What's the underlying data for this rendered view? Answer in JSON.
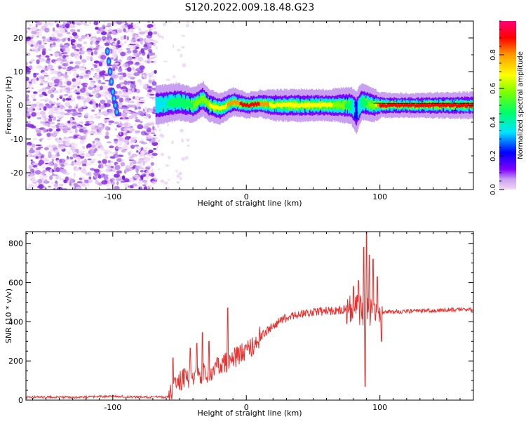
{
  "title": "S120.2022.009.18.48.G23",
  "chart_data": [
    {
      "type": "heatmap",
      "xlabel": "Height of straight line (km)",
      "ylabel": "Frequency (Hz)",
      "xlim": [
        -165,
        170
      ],
      "ylim": [
        -25,
        25
      ],
      "x_ticks": [
        -100,
        0,
        100
      ],
      "y_ticks": [
        -20,
        -10,
        0,
        10,
        20
      ],
      "colorbar": {
        "label": "Normalized spectral amplitude",
        "range": [
          0,
          1
        ],
        "ticks": [
          0.0,
          0.2,
          0.4,
          0.6,
          0.8
        ],
        "colors": [
          "#f4d9f4",
          "#c9a0f0",
          "#7f00ff",
          "#0000ff",
          "#00e5ff",
          "#00ff66",
          "#7fff00",
          "#ffff00",
          "#ff9900",
          "#ff0000",
          "#ff0077"
        ]
      },
      "noise_region_x": [
        -165,
        -68
      ],
      "signal_band": {
        "x": [
          -68,
          -60,
          -50,
          -40,
          -33,
          -28,
          -20,
          -10,
          0,
          10,
          20,
          40,
          60,
          78,
          82,
          86,
          95,
          100,
          120,
          140,
          170
        ],
        "freq": [
          0,
          0.5,
          1,
          0,
          2,
          0,
          -1,
          1,
          0,
          0.5,
          0,
          0,
          0,
          0,
          -2,
          1,
          0,
          0,
          0,
          0,
          0
        ],
        "amplitude": [
          0.4,
          0.45,
          0.5,
          0.55,
          0.6,
          0.65,
          0.7,
          0.8,
          0.9,
          0.85,
          0.7,
          0.65,
          0.7,
          0.5,
          0.3,
          0.5,
          0.6,
          0.9,
          0.95,
          0.9,
          0.85
        ]
      },
      "doppler_streak": {
        "x": [
          -104,
          -103,
          -102,
          -101,
          -100,
          -99,
          -98,
          -97
        ],
        "freq": [
          16,
          13,
          10,
          7,
          4,
          2,
          0,
          -2
        ]
      }
    },
    {
      "type": "line",
      "xlabel": "Height of straight line (km)",
      "ylabel": "SNR (10 * v/v)",
      "xlim": [
        -165,
        170
      ],
      "ylim": [
        0,
        860
      ],
      "x_ticks": [
        -100,
        0,
        100
      ],
      "y_ticks": [
        0,
        200,
        400,
        600,
        800
      ],
      "color": "#e8312f",
      "trend": {
        "x": [
          -165,
          -120,
          -100,
          -80,
          -58,
          -55,
          -50,
          -40,
          -30,
          -20,
          -10,
          0,
          10,
          20,
          30,
          40,
          50,
          60,
          70,
          80,
          85,
          90,
          95,
          100,
          110,
          130,
          150,
          170
        ],
        "y": [
          15,
          15,
          20,
          15,
          15,
          60,
          100,
          120,
          140,
          170,
          210,
          250,
          320,
          380,
          420,
          440,
          450,
          455,
          460,
          470,
          460,
          440,
          470,
          450,
          450,
          455,
          460,
          465
        ]
      },
      "spikes": [
        {
          "x": -55,
          "y": 215
        },
        {
          "x": -42,
          "y": 265
        },
        {
          "x": -37,
          "y": 290
        },
        {
          "x": -33,
          "y": 345
        },
        {
          "x": -28,
          "y": 300
        },
        {
          "x": -14,
          "y": 470
        },
        {
          "x": 80,
          "y": 580
        },
        {
          "x": 84,
          "y": 610
        },
        {
          "x": 88,
          "y": 780
        },
        {
          "x": 89,
          "y": 70
        },
        {
          "x": 90,
          "y": 860
        },
        {
          "x": 92,
          "y": 740
        },
        {
          "x": 95,
          "y": 720
        },
        {
          "x": 98,
          "y": 630
        },
        {
          "x": 101,
          "y": 300
        }
      ]
    }
  ]
}
